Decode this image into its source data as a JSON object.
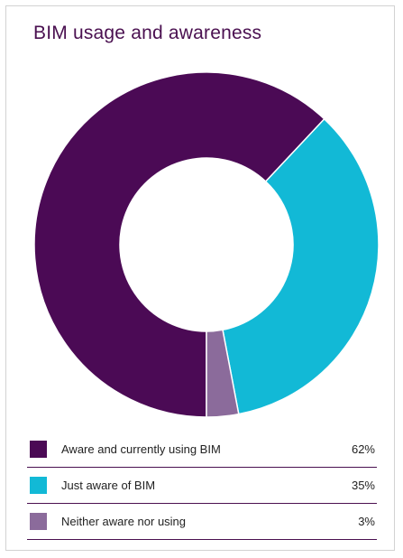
{
  "chart_data": {
    "type": "pie",
    "title": "BIM usage and awareness",
    "donut": true,
    "categories": [
      "Aware and currently using BIM",
      "Just aware of BIM",
      "Neither aware nor using"
    ],
    "values": [
      62,
      35,
      3
    ],
    "value_labels": [
      "62%",
      "35%",
      "3%"
    ],
    "colors": [
      "#4b0a55",
      "#12b9d6",
      "#8b6b9b"
    ],
    "legend_position": "bottom"
  },
  "colors": {
    "frame_border": "#d2d2d2",
    "title": "#4a1050",
    "rule": "#4a1050"
  }
}
